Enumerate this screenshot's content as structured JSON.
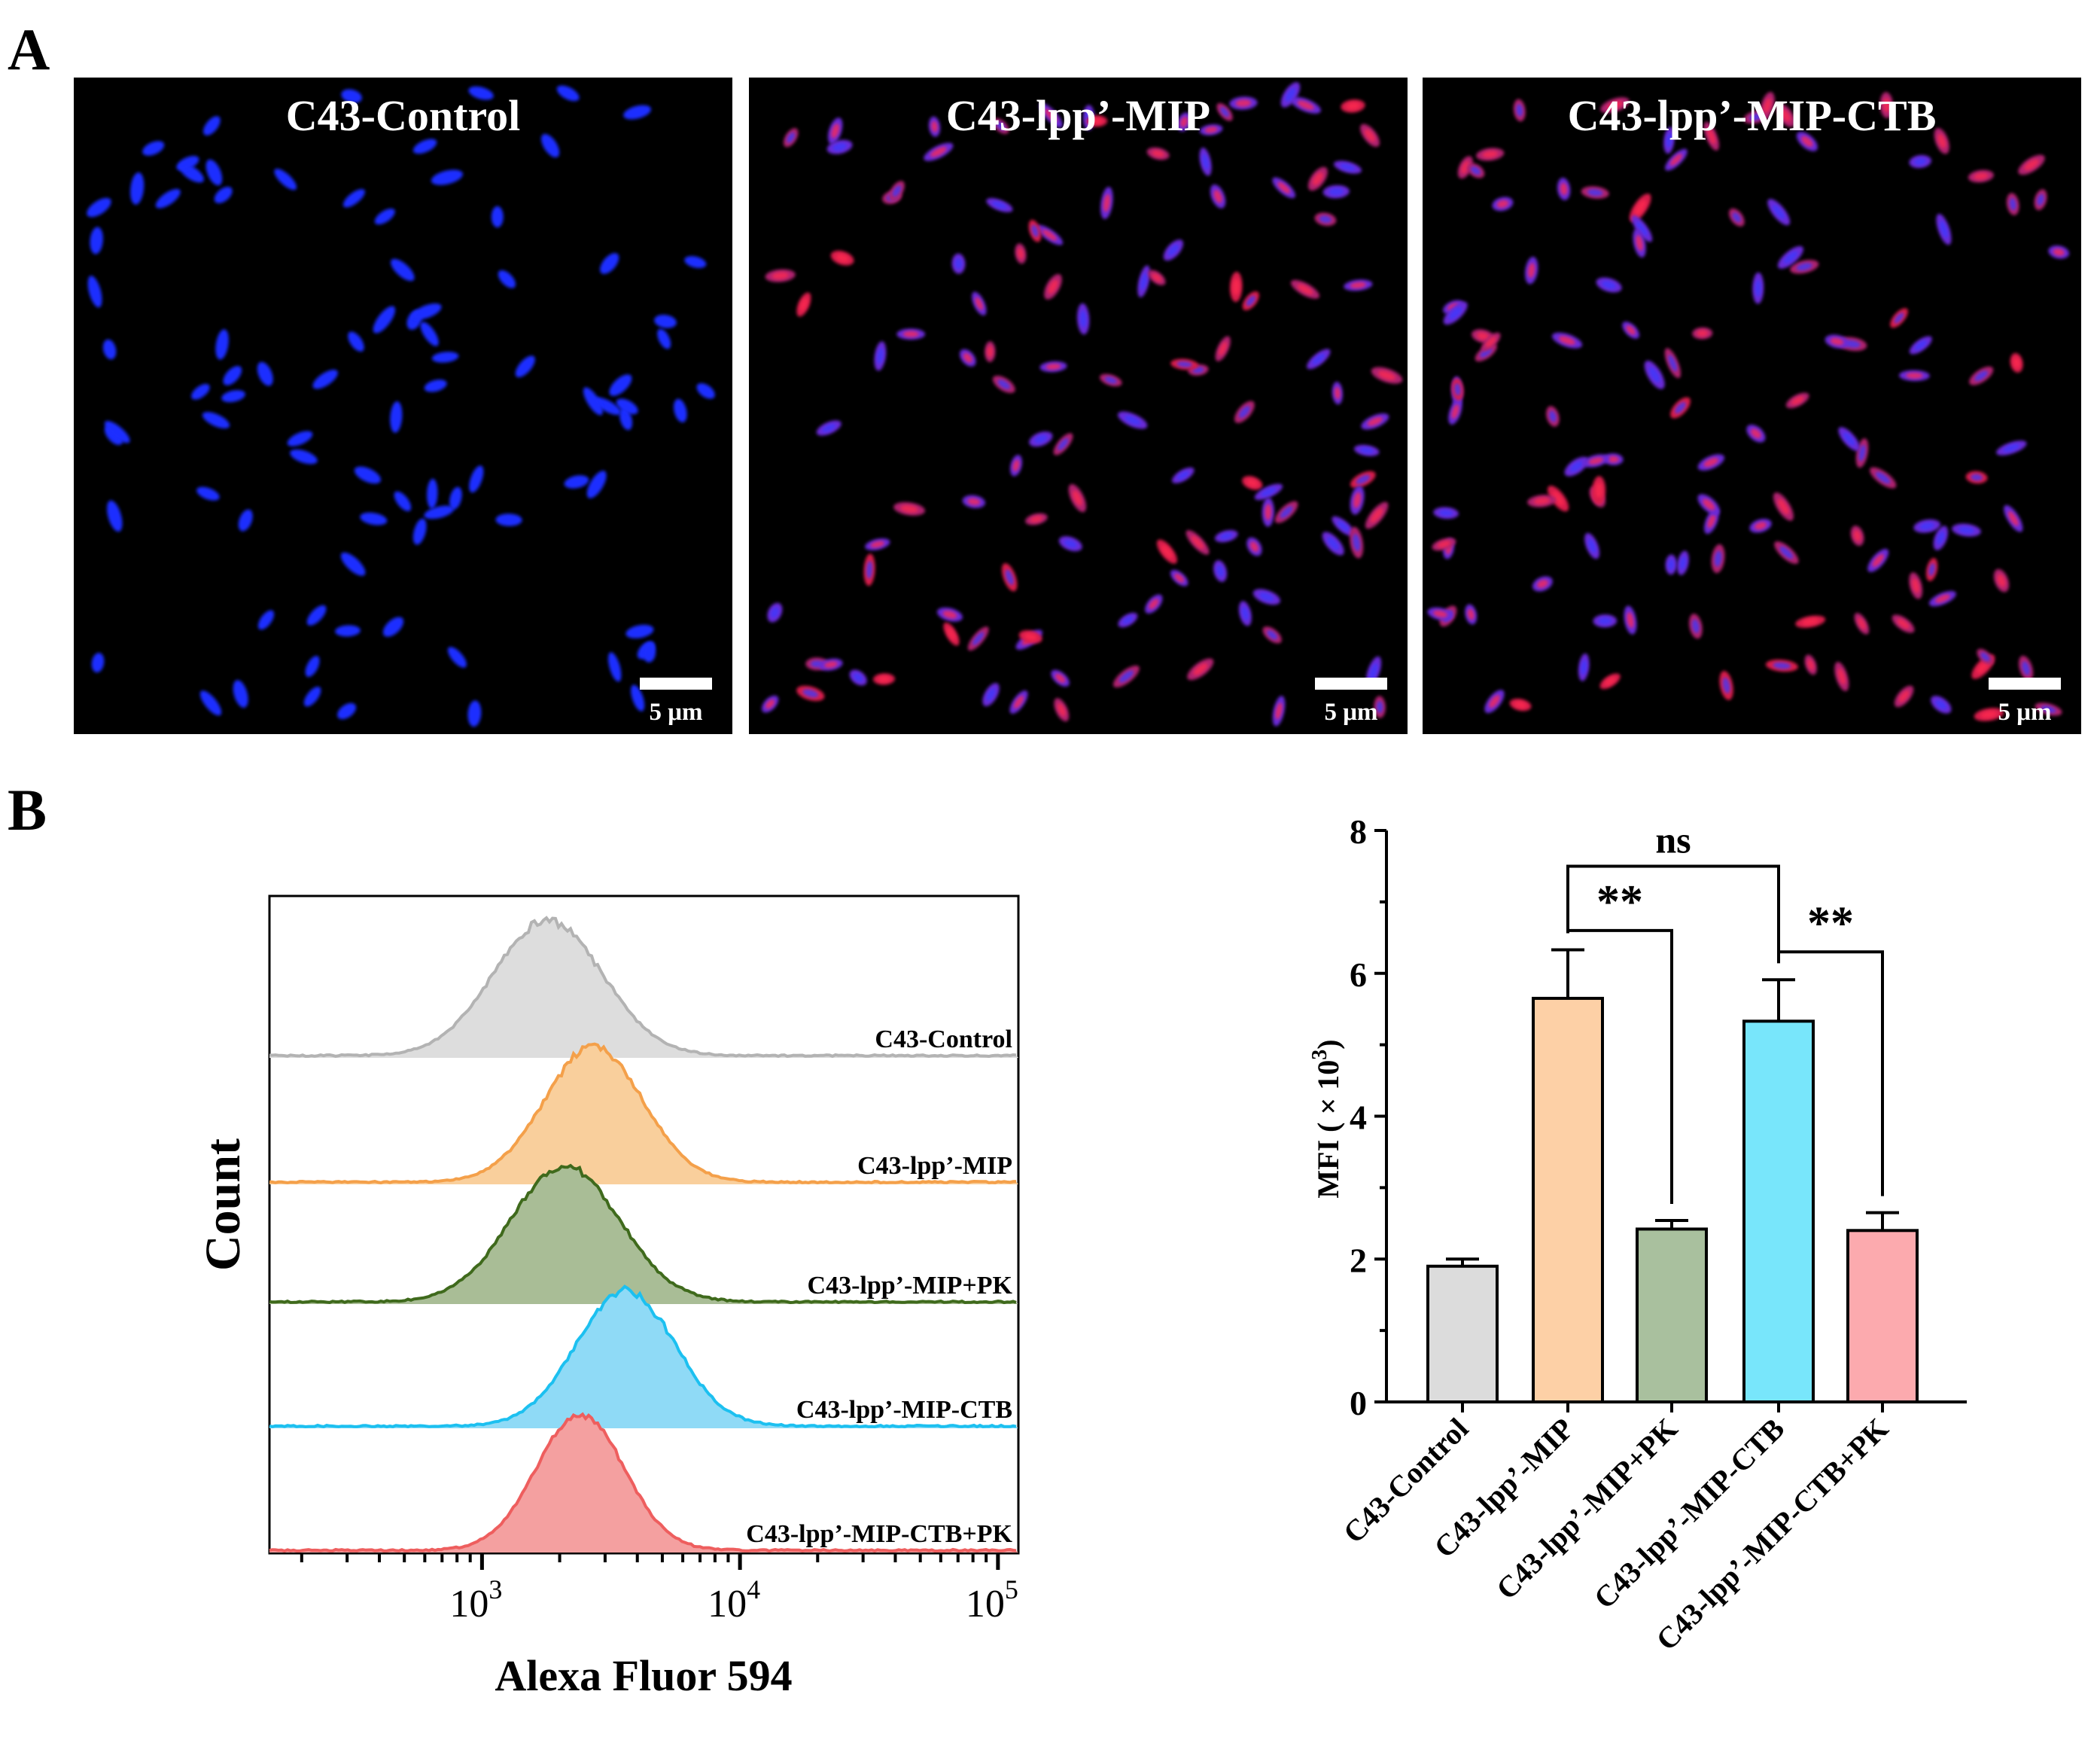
{
  "panels": {
    "a_label": "A",
    "b_label": "B"
  },
  "micrographs": [
    {
      "title": "C43-Control",
      "scale_bar": "5 μm",
      "red_intensity": 0.0
    },
    {
      "title": "C43-lpp’-MIP",
      "scale_bar": "5 μm",
      "red_intensity": 0.85
    },
    {
      "title": "C43-lpp’-MIP-CTB",
      "scale_bar": "5 μm",
      "red_intensity": 0.8
    }
  ],
  "colors": {
    "background": "#ffffff",
    "micrograph_bg": "#000000",
    "nucleus_blue": "#1a2dff",
    "stain_red": "#ff2a4f",
    "control": "#b3b3b3",
    "mip": "#f4a04a",
    "mip_pk": "#3f6a1c",
    "mip_ctb": "#1cc0f0",
    "mip_ctb_pk": "#ee5e5e"
  },
  "chart_data": [
    {
      "type": "histogram",
      "title": "",
      "xlabel": "Alexa Fluor 594",
      "ylabel": "Count",
      "x_scale": "log",
      "xlim": [
        150,
        120000
      ],
      "x_ticks": [
        {
          "value": 1000,
          "base": "10",
          "exp": "3"
        },
        {
          "value": 10000,
          "base": "10",
          "exp": "4"
        },
        {
          "value": 100000,
          "base": "10",
          "exp": "5"
        }
      ],
      "series": [
        {
          "name": "C43-Control",
          "color": "#b3b3b3",
          "fill": "#dddddd",
          "peak": 1800,
          "spread": 0.21
        },
        {
          "name": "C43-lpp’-MIP",
          "color": "#f4a04a",
          "fill": "#f9cf9c",
          "peak": 2700,
          "spread": 0.19
        },
        {
          "name": "C43-lpp’-MIP+PK",
          "color": "#3f6a1c",
          "fill": "#a9bd96",
          "peak": 2100,
          "spread": 0.21
        },
        {
          "name": "C43-lpp’-MIP-CTB",
          "color": "#1cc0f0",
          "fill": "#8fdaf6",
          "peak": 3600,
          "spread": 0.19
        },
        {
          "name": "C43-lpp’-MIP-CTB+PK",
          "color": "#ee5e5e",
          "fill": "#f4a0a0",
          "peak": 2400,
          "spread": 0.17
        }
      ]
    },
    {
      "type": "bar",
      "title": "",
      "xlabel": "",
      "ylabel": "MFI ( × 10",
      "ylabel_exp": "3",
      "ylabel_close": ")",
      "ylim": [
        0,
        8
      ],
      "y_ticks": [
        "0",
        "2",
        "4",
        "6",
        "8"
      ],
      "categories": [
        "C43-Control",
        "C43-lpp’-MIP",
        "C43-lpp’-MIP+PK",
        "C43-lpp’-MIP-CTB",
        "C43-lpp’-MIP-CTB+PK"
      ],
      "values": [
        1.9,
        5.65,
        2.42,
        5.33,
        2.4
      ],
      "errors": [
        0.1,
        0.68,
        0.12,
        0.58,
        0.25
      ],
      "bar_colors": [
        "#dcdcdc",
        "#fdd0a6",
        "#a9c09e",
        "#78e6fb",
        "#fcaaae"
      ],
      "annotations": [
        {
          "from": 1,
          "to": 3,
          "text": "ns",
          "y": 7.5
        },
        {
          "from": 1,
          "to": 2,
          "text": "**",
          "y": 6.6
        },
        {
          "from": 3,
          "to": 4,
          "text": "**",
          "y": 6.3
        }
      ]
    }
  ]
}
